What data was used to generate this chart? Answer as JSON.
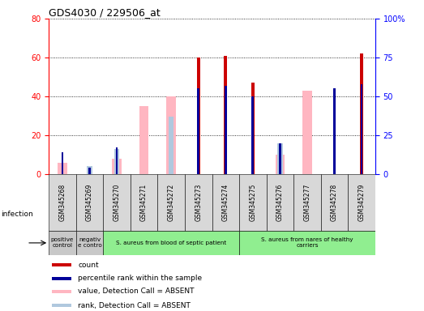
{
  "title": "GDS4030 / 229506_at",
  "samples": [
    "GSM345268",
    "GSM345269",
    "GSM345270",
    "GSM345271",
    "GSM345272",
    "GSM345273",
    "GSM345274",
    "GSM345275",
    "GSM345276",
    "GSM345277",
    "GSM345278",
    "GSM345279"
  ],
  "count": [
    0,
    0,
    0,
    0,
    0,
    60,
    61,
    47,
    0,
    0,
    0,
    62
  ],
  "percentile_rank": [
    14,
    4,
    17,
    0,
    0,
    55,
    57,
    50,
    20,
    0,
    55,
    58
  ],
  "value_absent": [
    6,
    0,
    8,
    35,
    40,
    0,
    0,
    0,
    10,
    43,
    0,
    0
  ],
  "rank_absent": [
    0,
    5,
    16,
    0,
    37,
    0,
    0,
    0,
    20,
    0,
    0,
    0
  ],
  "ylim_left": [
    0,
    80
  ],
  "yticks_left": [
    0,
    20,
    40,
    60,
    80
  ],
  "yticks_right": [
    0,
    25,
    50,
    75,
    100
  ],
  "ytick_labels_right": [
    "0",
    "25",
    "50",
    "75",
    "100%"
  ],
  "bar_color_count": "#cc0000",
  "bar_color_rank": "#000099",
  "bar_color_value_absent": "#ffb6c1",
  "bar_color_rank_absent": "#b0c8de",
  "groups": [
    {
      "start": 0,
      "end": 0,
      "color": "#c8c8c8",
      "label": "positive\ncontrol"
    },
    {
      "start": 1,
      "end": 1,
      "color": "#c8c8c8",
      "label": "negativ\ne contro"
    },
    {
      "start": 2,
      "end": 6,
      "color": "#90ee90",
      "label": "S. aureus from blood of septic patient"
    },
    {
      "start": 7,
      "end": 11,
      "color": "#90ee90",
      "label": "S. aureus from nares of healthy\ncarriers"
    }
  ],
  "infection_label": "infection",
  "legend": [
    {
      "label": "count",
      "color": "#cc0000"
    },
    {
      "label": "percentile rank within the sample",
      "color": "#000099"
    },
    {
      "label": "value, Detection Call = ABSENT",
      "color": "#ffb6c1"
    },
    {
      "label": "rank, Detection Call = ABSENT",
      "color": "#b0c8de"
    }
  ]
}
